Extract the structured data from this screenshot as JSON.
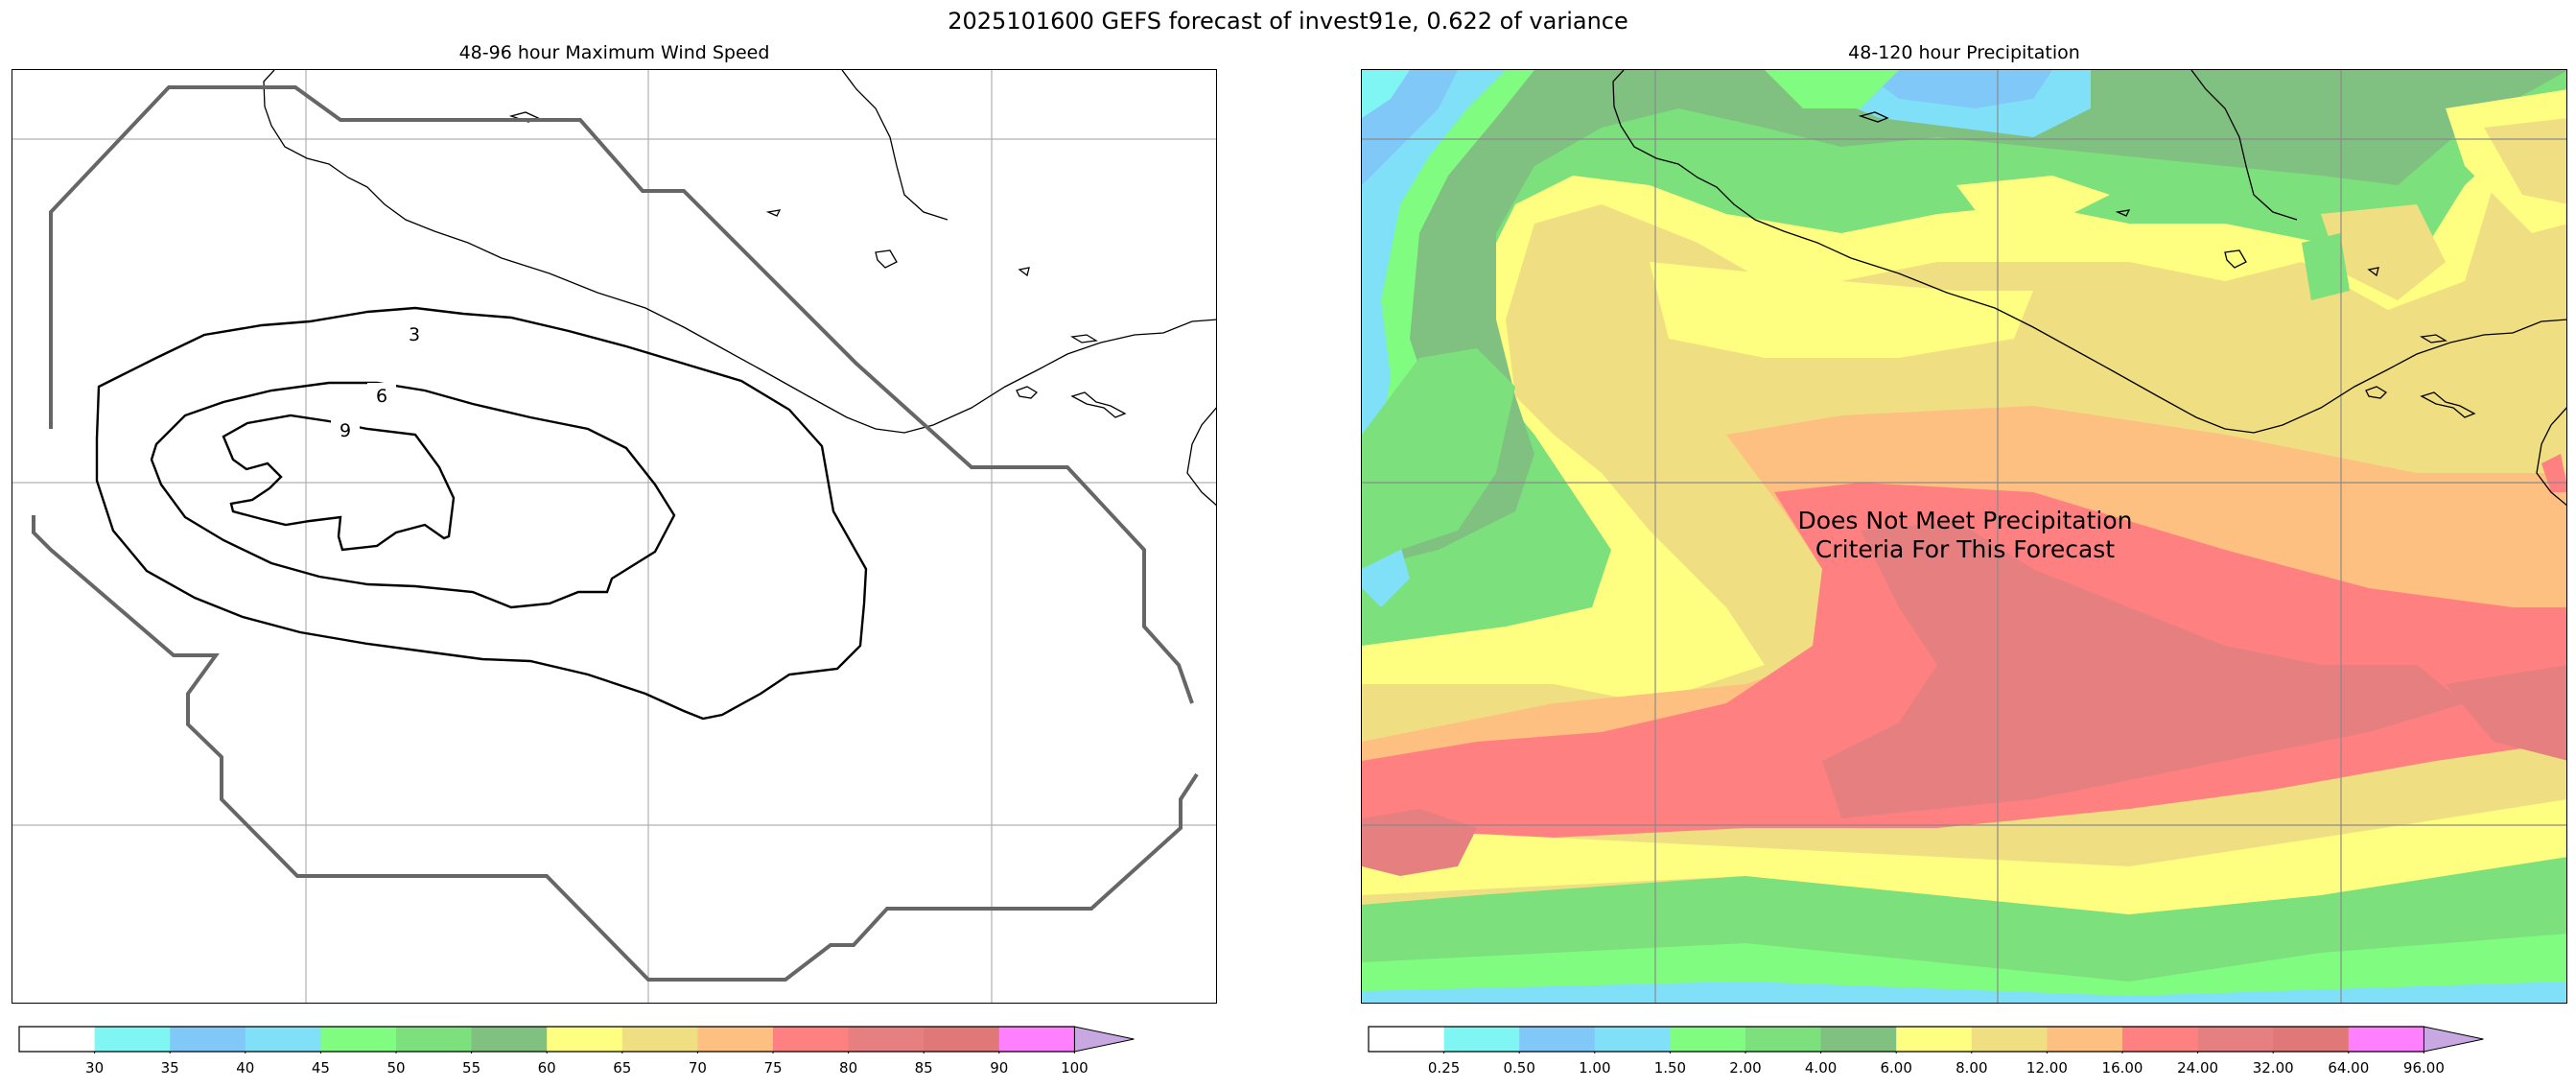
{
  "figure": {
    "title": "2025101600 GEFS forecast of invest91e, 0.622 of variance"
  },
  "left_panel": {
    "title": "48-96 hour Maximum Wind Speed",
    "contour_labels": [
      "3",
      "6",
      "9"
    ]
  },
  "right_panel": {
    "title": "48-120 hour Precipitation",
    "message_line1": "Does Not Meet Precipitation",
    "message_line2": "Criteria For This Forecast"
  },
  "colors": {
    "bins": [
      "#ffffff",
      "#80f6f4",
      "#80c8f8",
      "#80e0f8",
      "#80fc80",
      "#7ce07c",
      "#80c080",
      "#fefe80",
      "#f0de82",
      "#fec080",
      "#fe8080",
      "#e68080",
      "#e07878",
      "#fe80fe",
      "#c8a8e0"
    ],
    "extend": "#c8a8e0",
    "outline_gray": "#666666"
  },
  "wind_colorbar": {
    "ticks": [
      "30",
      "35",
      "40",
      "45",
      "50",
      "55",
      "60",
      "65",
      "70",
      "75",
      "80",
      "85",
      "90",
      "100"
    ]
  },
  "precip_colorbar": {
    "ticks": [
      "0.25",
      "0.50",
      "1.00",
      "1.50",
      "2.00",
      "4.00",
      "6.00",
      "8.00",
      "12.00",
      "16.00",
      "24.00",
      "32.00",
      "64.00",
      "96.00"
    ]
  }
}
